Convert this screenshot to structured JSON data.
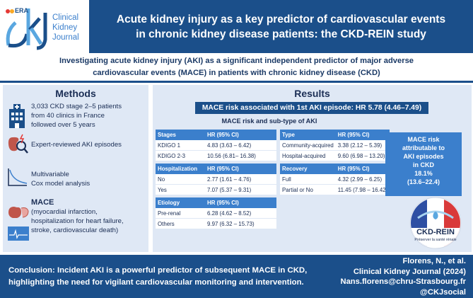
{
  "logo": {
    "era": "ERA",
    "ckj": "ckj",
    "journal_line1": "Clinical",
    "journal_line2": "Kidney",
    "journal_line3": "Journal"
  },
  "title": {
    "line1": "Acute kidney injury as a key predictor of cardiovascular events",
    "line2": "in chronic kidney disease patients: the CKD-REIN study"
  },
  "subtitle": {
    "line1": "Investigating acute kidney injury (AKI) as a significant independent predictor of major adverse",
    "line2": "cardiovascular events (MACE) in patients with chronic kidney disease (CKD)"
  },
  "methods": {
    "title": "Methods",
    "item1": {
      "line1": "3,033 CKD stage 2–5 patients",
      "line2": "from 40 clinics in France",
      "line3": "followed over 5 years"
    },
    "item2": {
      "line1": "Expert-reviewed AKI episodes"
    },
    "item3": {
      "line1": "Multivariable",
      "line2": "Cox model analysis"
    },
    "item4": {
      "title": "MACE",
      "line1": "(myocardial infarction,",
      "line2": "hospitalization for heart failure,",
      "line3": "stroke, cardiovascular death)"
    }
  },
  "results": {
    "title": "Results",
    "banner": "MACE risk associated with 1st AKI episode: HR 5.78 (4.46–7.49)",
    "subbanner": "MACE risk and sub-type of AKI",
    "hr_label": "HR (95% CI)",
    "left_groups": [
      {
        "name": "Stages",
        "rows": [
          {
            "label": "KDIGO 1",
            "hr": "4.83 (3.63 – 6.42)"
          },
          {
            "label": "KDIGO 2-3",
            "hr": "10.56 (6.81– 16.38)"
          }
        ]
      },
      {
        "name": "Hospitalization",
        "rows": [
          {
            "label": "No",
            "hr": "2.77 (1.61 – 4.76)"
          },
          {
            "label": "Yes",
            "hr": "7.07 (5.37 – 9.31)"
          }
        ]
      },
      {
        "name": "Etiology",
        "rows": [
          {
            "label": "Pre-renal",
            "hr": "6.28 (4.62 – 8.52)"
          },
          {
            "label": "Others",
            "hr": "9.97 (6.32 – 15.73)"
          }
        ]
      }
    ],
    "right_groups": [
      {
        "name": "Type",
        "rows": [
          {
            "label": "Community-acquired",
            "hr": "3.38 (2.12 – 5.39)"
          },
          {
            "label": "Hospital-acquired",
            "hr": "9.60 (6.98 – 13.20)"
          }
        ]
      },
      {
        "name": "Recovery",
        "rows": [
          {
            "label": "Full",
            "hr": "4.32 (2.99 – 6.25)"
          },
          {
            "label": "Partial or No",
            "hr": "11.45 (7.98 – 16.42)"
          }
        ]
      }
    ],
    "attributable": {
      "line1": "MACE risk",
      "line2": "attributable to",
      "line3": "AKI episodes",
      "line4": "in CKD",
      "line5": "18.1%",
      "line6": "(13.6–22.4)"
    },
    "ckdrein": {
      "name": "CKD-REIN",
      "tagline": "Préserver la santé rénale"
    }
  },
  "conclusion": {
    "line1": "Conclusion: Incident AKI is a powerful predictor of subsequent MACE in CKD,",
    "line2": "highlighting the need for vigilant cardiovascular monitoring and intervention."
  },
  "citation": {
    "author": "Florens, N., et al.",
    "journal": "Clinical Kidney Journal (2024)",
    "email": "Nans.florens@chru-Strasbourg.fr",
    "social": "@CKJsocial"
  }
}
